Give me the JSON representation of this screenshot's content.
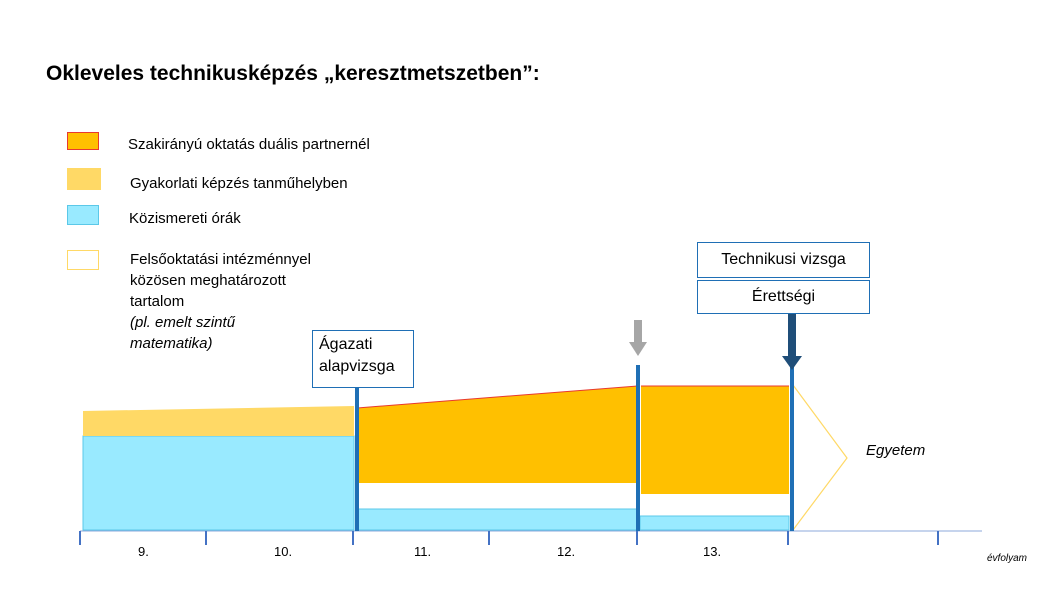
{
  "title": "Okleveles technikusképzés „keresztmetszetben”:",
  "legend": {
    "items": [
      {
        "label": "Szakirányú oktatás duális partnernél",
        "fill": "#ffc000",
        "stroke": "#e8392f"
      },
      {
        "label": "Gyakorlati képzés  tanműhelyben",
        "fill": "#ffd966",
        "stroke": "#ffd966"
      },
      {
        "label": "Közismereti órák",
        "fill": "#99eaff",
        "stroke": "#5bc8e8"
      }
    ],
    "higher_ed": {
      "line1": "Felsőoktatási intézménnyel",
      "line2": "közösen meghatározott",
      "line3": "tartalom",
      "line4": "(pl. emelt szintű",
      "line5": "matematika)",
      "fill": "#ffffff",
      "stroke": "#ffd966"
    }
  },
  "exams": {
    "agazati_line1": "Ágazati",
    "agazati_line2": "alapvizsga",
    "technikusi": "Technikusi vizsga",
    "erettsegi": "Érettségi"
  },
  "egyetem": "Egyetem",
  "grades": [
    "9.",
    "10.",
    "11.",
    "12.",
    "13."
  ],
  "axis_label": "évfolyam",
  "colors": {
    "accent_blue": "#1f6fb5",
    "dark_blue": "#1f4e79",
    "grey_arrow": "#a6a6a6",
    "axis": "#8ea9db"
  }
}
